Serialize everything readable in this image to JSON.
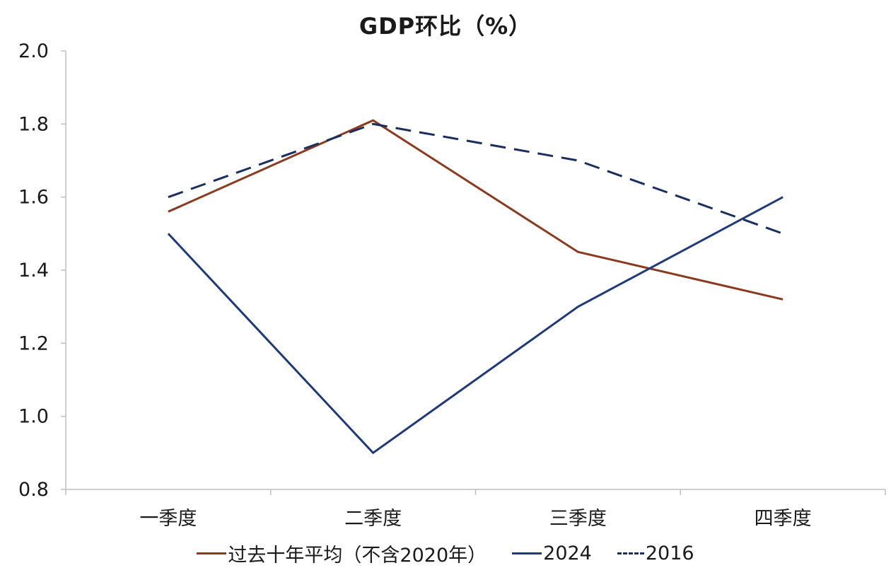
{
  "chart_data": {
    "type": "line",
    "title": "GDP环比（%）",
    "categories": [
      "一季度",
      "二季度",
      "三季度",
      "四季度"
    ],
    "ylim": [
      0.8,
      2.0
    ],
    "yticks": [
      "2.0",
      "1.8",
      "1.6",
      "1.4",
      "1.2",
      "1.0",
      "0.8"
    ],
    "xlabel": "",
    "ylabel": "",
    "grid": false,
    "legend_position": "bottom",
    "series": [
      {
        "name": "过去十年平均（不含2020年）",
        "values": [
          1.56,
          1.81,
          1.45,
          1.32
        ],
        "color": "#8B3A1E",
        "style": "solid"
      },
      {
        "name": "2024",
        "values": [
          1.5,
          0.9,
          1.3,
          1.6
        ],
        "color": "#1F3A7A",
        "style": "solid"
      },
      {
        "name": "2016",
        "values": [
          1.6,
          1.8,
          1.7,
          1.5
        ],
        "color": "#1A2F60",
        "style": "dashed"
      }
    ]
  }
}
